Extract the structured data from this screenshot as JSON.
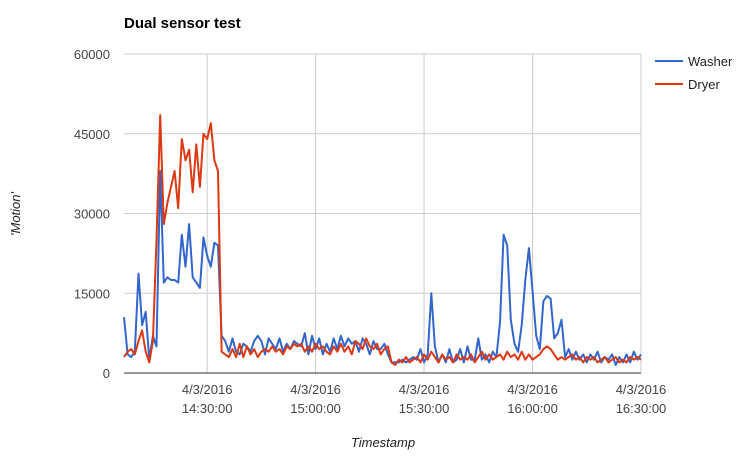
{
  "chart_data": {
    "type": "line",
    "title": "Dual sensor test",
    "xlabel": "Timestamp",
    "ylabel": "'Motion'",
    "ylim": [
      0,
      60000
    ],
    "yticks": [
      0,
      15000,
      30000,
      45000,
      60000
    ],
    "ytick_labels": [
      "0",
      "15000",
      "30000",
      "45000",
      "60000"
    ],
    "xlim": [
      "14:07",
      "16:30"
    ],
    "xticks": [
      {
        "time": "14:30",
        "date": "4/3/2016",
        "clock": "14:30:00"
      },
      {
        "time": "15:00",
        "date": "4/3/2016",
        "clock": "15:00:00"
      },
      {
        "time": "15:30",
        "date": "4/3/2016",
        "clock": "15:30:00"
      },
      {
        "time": "16:00",
        "date": "4/3/2016",
        "clock": "16:00:00"
      },
      {
        "time": "16:30",
        "date": "4/3/2016",
        "clock": "16:30:00"
      }
    ],
    "grid": true,
    "legend_position": "right",
    "series": [
      {
        "name": "Washer",
        "color": "#3366cc",
        "points": [
          [
            "14:07",
            10500
          ],
          [
            "14:08",
            3500
          ],
          [
            "14:09",
            3000
          ],
          [
            "14:10",
            4000
          ],
          [
            "14:11",
            18700
          ],
          [
            "14:12",
            9000
          ],
          [
            "14:13",
            11500
          ],
          [
            "14:14",
            2500
          ],
          [
            "14:15",
            7000
          ],
          [
            "14:16",
            5000
          ],
          [
            "14:17",
            38000
          ],
          [
            "14:18",
            17000
          ],
          [
            "14:19",
            18000
          ],
          [
            "14:20",
            17500
          ],
          [
            "14:21",
            17500
          ],
          [
            "14:22",
            17000
          ],
          [
            "14:23",
            26000
          ],
          [
            "14:24",
            20000
          ],
          [
            "14:25",
            28000
          ],
          [
            "14:26",
            18000
          ],
          [
            "14:27",
            17000
          ],
          [
            "14:28",
            16000
          ],
          [
            "14:29",
            25500
          ],
          [
            "14:30",
            22000
          ],
          [
            "14:31",
            20000
          ],
          [
            "14:32",
            24500
          ],
          [
            "14:33",
            24000
          ],
          [
            "14:34",
            7000
          ],
          [
            "14:35",
            6000
          ],
          [
            "14:36",
            4000
          ],
          [
            "14:37",
            6500
          ],
          [
            "14:38",
            4000
          ],
          [
            "14:39",
            3500
          ],
          [
            "14:40",
            5500
          ],
          [
            "14:41",
            5000
          ],
          [
            "14:42",
            4000
          ],
          [
            "14:43",
            6000
          ],
          [
            "14:44",
            7000
          ],
          [
            "14:45",
            6000
          ],
          [
            "14:46",
            3500
          ],
          [
            "14:47",
            6500
          ],
          [
            "14:48",
            5500
          ],
          [
            "14:49",
            4500
          ],
          [
            "14:50",
            6500
          ],
          [
            "14:51",
            4000
          ],
          [
            "14:52",
            5500
          ],
          [
            "14:53",
            4500
          ],
          [
            "14:54",
            6000
          ],
          [
            "14:55",
            5500
          ],
          [
            "14:56",
            5000
          ],
          [
            "14:57",
            7500
          ],
          [
            "14:58",
            3500
          ],
          [
            "14:59",
            7000
          ],
          [
            "15:00",
            4500
          ],
          [
            "15:01",
            6500
          ],
          [
            "15:02",
            3500
          ],
          [
            "15:03",
            5500
          ],
          [
            "15:04",
            4000
          ],
          [
            "15:05",
            6500
          ],
          [
            "15:06",
            4500
          ],
          [
            "15:07",
            7000
          ],
          [
            "15:08",
            5000
          ],
          [
            "15:09",
            6500
          ],
          [
            "15:10",
            5500
          ],
          [
            "15:11",
            6000
          ],
          [
            "15:12",
            4000
          ],
          [
            "15:13",
            6500
          ],
          [
            "15:14",
            5500
          ],
          [
            "15:15",
            3500
          ],
          [
            "15:16",
            6000
          ],
          [
            "15:17",
            4500
          ],
          [
            "15:18",
            4500
          ],
          [
            "15:19",
            5500
          ],
          [
            "15:20",
            3500
          ],
          [
            "15:21",
            2000
          ],
          [
            "15:22",
            2000
          ],
          [
            "15:23",
            2000
          ],
          [
            "15:24",
            2500
          ],
          [
            "15:25",
            2000
          ],
          [
            "15:26",
            2500
          ],
          [
            "15:27",
            3000
          ],
          [
            "15:28",
            2500
          ],
          [
            "15:29",
            4500
          ],
          [
            "15:30",
            2000
          ],
          [
            "15:31",
            3500
          ],
          [
            "15:32",
            15000
          ],
          [
            "15:33",
            5000
          ],
          [
            "15:34",
            2000
          ],
          [
            "15:35",
            3500
          ],
          [
            "15:36",
            2000
          ],
          [
            "15:37",
            4500
          ],
          [
            "15:38",
            2000
          ],
          [
            "15:39",
            2500
          ],
          [
            "15:40",
            4500
          ],
          [
            "15:41",
            2000
          ],
          [
            "15:42",
            5000
          ],
          [
            "15:43",
            2500
          ],
          [
            "15:44",
            2500
          ],
          [
            "15:45",
            6500
          ],
          [
            "15:46",
            2500
          ],
          [
            "15:47",
            3500
          ],
          [
            "15:48",
            2000
          ],
          [
            "15:49",
            4000
          ],
          [
            "15:50",
            3000
          ],
          [
            "15:51",
            9500
          ],
          [
            "15:52",
            26000
          ],
          [
            "15:53",
            24000
          ],
          [
            "15:54",
            10000
          ],
          [
            "15:55",
            5500
          ],
          [
            "15:56",
            4000
          ],
          [
            "15:57",
            9000
          ],
          [
            "15:58",
            17500
          ],
          [
            "15:59",
            23500
          ],
          [
            "16:00",
            15500
          ],
          [
            "16:01",
            7000
          ],
          [
            "16:02",
            4500
          ],
          [
            "16:03",
            13500
          ],
          [
            "16:04",
            14500
          ],
          [
            "16:05",
            14000
          ],
          [
            "16:06",
            6500
          ],
          [
            "16:07",
            7500
          ],
          [
            "16:08",
            10000
          ],
          [
            "16:09",
            3000
          ],
          [
            "16:10",
            4500
          ],
          [
            "16:11",
            2500
          ],
          [
            "16:12",
            4000
          ],
          [
            "16:13",
            2500
          ],
          [
            "16:14",
            3500
          ],
          [
            "16:15",
            2000
          ],
          [
            "16:16",
            3500
          ],
          [
            "16:17",
            2500
          ],
          [
            "16:18",
            4000
          ],
          [
            "16:19",
            2000
          ],
          [
            "16:20",
            3000
          ],
          [
            "16:21",
            2500
          ],
          [
            "16:22",
            3500
          ],
          [
            "16:23",
            1500
          ],
          [
            "16:24",
            3000
          ],
          [
            "16:25",
            2000
          ],
          [
            "16:26",
            3500
          ],
          [
            "16:27",
            2000
          ],
          [
            "16:28",
            4000
          ],
          [
            "16:29",
            2500
          ],
          [
            "16:30",
            3500
          ]
        ]
      },
      {
        "name": "Dryer",
        "color": "#dc3912",
        "points": [
          [
            "14:07",
            3000
          ],
          [
            "14:08",
            4000
          ],
          [
            "14:09",
            4500
          ],
          [
            "14:10",
            3500
          ],
          [
            "14:11",
            6000
          ],
          [
            "14:12",
            8000
          ],
          [
            "14:13",
            4000
          ],
          [
            "14:14",
            2000
          ],
          [
            "14:15",
            6000
          ],
          [
            "14:16",
            25000
          ],
          [
            "14:17",
            48500
          ],
          [
            "14:18",
            28000
          ],
          [
            "14:19",
            32000
          ],
          [
            "14:20",
            35000
          ],
          [
            "14:21",
            38000
          ],
          [
            "14:22",
            31000
          ],
          [
            "14:23",
            44000
          ],
          [
            "14:24",
            40000
          ],
          [
            "14:25",
            42000
          ],
          [
            "14:26",
            34000
          ],
          [
            "14:27",
            43000
          ],
          [
            "14:28",
            35000
          ],
          [
            "14:29",
            45000
          ],
          [
            "14:30",
            44000
          ],
          [
            "14:31",
            47000
          ],
          [
            "14:32",
            40000
          ],
          [
            "14:33",
            38000
          ],
          [
            "14:34",
            4000
          ],
          [
            "14:35",
            3500
          ],
          [
            "14:36",
            3000
          ],
          [
            "14:37",
            4500
          ],
          [
            "14:38",
            3000
          ],
          [
            "14:39",
            5500
          ],
          [
            "14:40",
            3000
          ],
          [
            "14:41",
            5000
          ],
          [
            "14:42",
            3500
          ],
          [
            "14:43",
            4500
          ],
          [
            "14:44",
            3000
          ],
          [
            "14:45",
            4000
          ],
          [
            "14:46",
            4500
          ],
          [
            "14:47",
            4000
          ],
          [
            "14:48",
            5000
          ],
          [
            "14:49",
            4000
          ],
          [
            "14:50",
            4500
          ],
          [
            "14:51",
            3500
          ],
          [
            "14:52",
            5000
          ],
          [
            "14:53",
            4500
          ],
          [
            "14:54",
            5500
          ],
          [
            "14:55",
            5000
          ],
          [
            "14:56",
            5500
          ],
          [
            "14:57",
            4000
          ],
          [
            "14:58",
            5000
          ],
          [
            "14:59",
            4000
          ],
          [
            "15:00",
            5500
          ],
          [
            "15:01",
            4500
          ],
          [
            "15:02",
            5000
          ],
          [
            "15:03",
            4000
          ],
          [
            "15:04",
            3500
          ],
          [
            "15:05",
            5000
          ],
          [
            "15:06",
            4000
          ],
          [
            "15:07",
            5500
          ],
          [
            "15:08",
            4000
          ],
          [
            "15:09",
            5000
          ],
          [
            "15:10",
            3500
          ],
          [
            "15:11",
            6000
          ],
          [
            "15:12",
            5500
          ],
          [
            "15:13",
            4500
          ],
          [
            "15:14",
            6500
          ],
          [
            "15:15",
            5000
          ],
          [
            "15:16",
            4500
          ],
          [
            "15:17",
            5500
          ],
          [
            "15:18",
            3500
          ],
          [
            "15:19",
            4500
          ],
          [
            "15:20",
            5000
          ],
          [
            "15:21",
            2000
          ],
          [
            "15:22",
            1500
          ],
          [
            "15:23",
            2500
          ],
          [
            "15:24",
            2000
          ],
          [
            "15:25",
            3000
          ],
          [
            "15:26",
            2000
          ],
          [
            "15:27",
            2500
          ],
          [
            "15:28",
            3000
          ],
          [
            "15:29",
            2000
          ],
          [
            "15:30",
            3500
          ],
          [
            "15:31",
            2500
          ],
          [
            "15:32",
            4000
          ],
          [
            "15:33",
            3000
          ],
          [
            "15:34",
            2000
          ],
          [
            "15:35",
            3500
          ],
          [
            "15:36",
            2500
          ],
          [
            "15:37",
            3000
          ],
          [
            "15:38",
            2000
          ],
          [
            "15:39",
            3500
          ],
          [
            "15:40",
            2500
          ],
          [
            "15:41",
            3000
          ],
          [
            "15:42",
            2500
          ],
          [
            "15:43",
            3500
          ],
          [
            "15:44",
            2000
          ],
          [
            "15:45",
            3000
          ],
          [
            "15:46",
            4000
          ],
          [
            "15:47",
            2500
          ],
          [
            "15:48",
            3500
          ],
          [
            "15:49",
            2500
          ],
          [
            "15:50",
            3000
          ],
          [
            "15:51",
            3500
          ],
          [
            "15:52",
            2500
          ],
          [
            "15:53",
            4000
          ],
          [
            "15:54",
            3000
          ],
          [
            "15:55",
            3500
          ],
          [
            "15:56",
            2500
          ],
          [
            "15:57",
            4000
          ],
          [
            "15:58",
            2500
          ],
          [
            "15:59",
            3500
          ],
          [
            "16:00",
            2500
          ],
          [
            "16:01",
            3000
          ],
          [
            "16:02",
            3500
          ],
          [
            "16:03",
            4500
          ],
          [
            "16:04",
            5000
          ],
          [
            "16:05",
            4500
          ],
          [
            "16:06",
            3500
          ],
          [
            "16:07",
            2500
          ],
          [
            "16:08",
            3000
          ],
          [
            "16:09",
            2500
          ],
          [
            "16:10",
            3000
          ],
          [
            "16:11",
            3500
          ],
          [
            "16:12",
            2500
          ],
          [
            "16:13",
            3000
          ],
          [
            "16:14",
            2000
          ],
          [
            "16:15",
            3000
          ],
          [
            "16:16",
            2500
          ],
          [
            "16:17",
            3000
          ],
          [
            "16:18",
            2000
          ],
          [
            "16:19",
            2500
          ],
          [
            "16:20",
            3000
          ],
          [
            "16:21",
            2000
          ],
          [
            "16:22",
            2500
          ],
          [
            "16:23",
            3000
          ],
          [
            "16:24",
            2000
          ],
          [
            "16:25",
            2500
          ],
          [
            "16:26",
            2000
          ],
          [
            "16:27",
            3000
          ],
          [
            "16:28",
            2500
          ],
          [
            "16:29",
            3000
          ],
          [
            "16:30",
            2500
          ]
        ]
      }
    ]
  },
  "colors": {
    "washer": "#3366cc",
    "dryer": "#dc3912",
    "grid": "#cccccc",
    "axis": "#333333"
  }
}
